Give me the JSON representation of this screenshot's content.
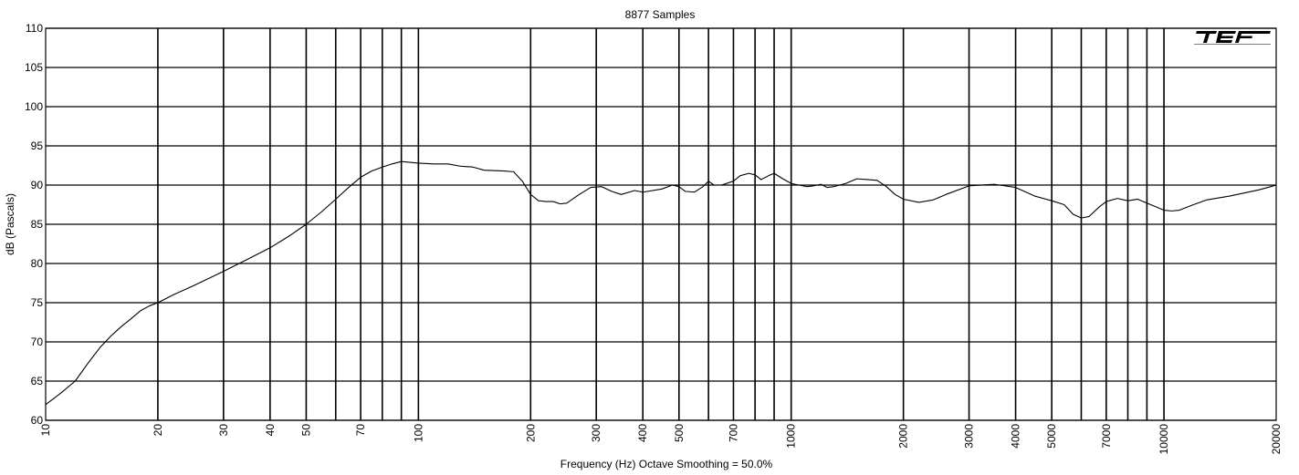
{
  "chart_data": {
    "type": "line",
    "title": "8877 Samples",
    "xlabel": "Frequency (Hz) Octave Smoothing = 50.0%",
    "ylabel": "dB (Pascals)",
    "x_scale": "log",
    "xlim": [
      10,
      20000
    ],
    "ylim": [
      60,
      110
    ],
    "grid": true,
    "logo": "TEF",
    "x_ticks": [
      {
        "value": 10,
        "label": "10"
      },
      {
        "value": 20,
        "label": "20"
      },
      {
        "value": 30,
        "label": "30"
      },
      {
        "value": 40,
        "label": "40"
      },
      {
        "value": 50,
        "label": "50"
      },
      {
        "value": 70,
        "label": "70"
      },
      {
        "value": 100,
        "label": "100"
      },
      {
        "value": 200,
        "label": "200"
      },
      {
        "value": 300,
        "label": "300"
      },
      {
        "value": 400,
        "label": "400"
      },
      {
        "value": 500,
        "label": "500"
      },
      {
        "value": 700,
        "label": "700"
      },
      {
        "value": 1000,
        "label": "1000"
      },
      {
        "value": 2000,
        "label": "2000"
      },
      {
        "value": 3000,
        "label": "3000"
      },
      {
        "value": 4000,
        "label": "4000"
      },
      {
        "value": 5000,
        "label": "5000"
      },
      {
        "value": 7000,
        "label": "7000"
      },
      {
        "value": 10000,
        "label": "10000"
      },
      {
        "value": 20000,
        "label": "20000"
      }
    ],
    "x_gridlines": [
      20,
      30,
      40,
      50,
      60,
      70,
      80,
      90,
      100,
      200,
      300,
      400,
      500,
      600,
      700,
      800,
      900,
      1000,
      2000,
      3000,
      4000,
      5000,
      6000,
      7000,
      8000,
      9000,
      10000
    ],
    "y_ticks": [
      {
        "value": 60,
        "label": "60"
      },
      {
        "value": 65,
        "label": "65"
      },
      {
        "value": 70,
        "label": "70"
      },
      {
        "value": 75,
        "label": "75"
      },
      {
        "value": 80,
        "label": "80"
      },
      {
        "value": 85,
        "label": "85"
      },
      {
        "value": 90,
        "label": "90"
      },
      {
        "value": 95,
        "label": "95"
      },
      {
        "value": 100,
        "label": "100"
      },
      {
        "value": 105,
        "label": "105"
      },
      {
        "value": 110,
        "label": "110"
      }
    ],
    "series": [
      {
        "color": "#000000",
        "points": [
          [
            10,
            62.0
          ],
          [
            11,
            63.5
          ],
          [
            12,
            65.0
          ],
          [
            13,
            67.3
          ],
          [
            14,
            69.3
          ],
          [
            15,
            70.8
          ],
          [
            16,
            72.0
          ],
          [
            17,
            73.0
          ],
          [
            18,
            74.0
          ],
          [
            19,
            74.6
          ],
          [
            20,
            75.0
          ],
          [
            22,
            76.0
          ],
          [
            25,
            77.2
          ],
          [
            30,
            79.0
          ],
          [
            35,
            80.6
          ],
          [
            40,
            82.0
          ],
          [
            45,
            83.5
          ],
          [
            50,
            85.0
          ],
          [
            55,
            86.6
          ],
          [
            60,
            88.2
          ],
          [
            65,
            89.7
          ],
          [
            70,
            91.0
          ],
          [
            75,
            91.8
          ],
          [
            80,
            92.3
          ],
          [
            85,
            92.7
          ],
          [
            90,
            93.0
          ],
          [
            100,
            92.8
          ],
          [
            110,
            92.7
          ],
          [
            120,
            92.7
          ],
          [
            130,
            92.4
          ],
          [
            140,
            92.3
          ],
          [
            150,
            91.9
          ],
          [
            170,
            91.8
          ],
          [
            180,
            91.7
          ],
          [
            190,
            90.5
          ],
          [
            200,
            88.8
          ],
          [
            210,
            88.0
          ],
          [
            220,
            87.9
          ],
          [
            230,
            87.9
          ],
          [
            240,
            87.6
          ],
          [
            250,
            87.7
          ],
          [
            270,
            88.8
          ],
          [
            290,
            89.7
          ],
          [
            310,
            89.8
          ],
          [
            330,
            89.2
          ],
          [
            350,
            88.8
          ],
          [
            380,
            89.3
          ],
          [
            400,
            89.1
          ],
          [
            450,
            89.5
          ],
          [
            480,
            90.0
          ],
          [
            500,
            89.8
          ],
          [
            520,
            89.2
          ],
          [
            550,
            89.1
          ],
          [
            580,
            89.8
          ],
          [
            600,
            90.5
          ],
          [
            620,
            90.0
          ],
          [
            650,
            90.0
          ],
          [
            700,
            90.5
          ],
          [
            730,
            91.2
          ],
          [
            770,
            91.5
          ],
          [
            800,
            91.3
          ],
          [
            830,
            90.7
          ],
          [
            870,
            91.2
          ],
          [
            900,
            91.5
          ],
          [
            950,
            90.8
          ],
          [
            1000,
            90.2
          ],
          [
            1050,
            90.0
          ],
          [
            1100,
            89.8
          ],
          [
            1150,
            89.9
          ],
          [
            1200,
            90.1
          ],
          [
            1250,
            89.7
          ],
          [
            1300,
            89.8
          ],
          [
            1400,
            90.2
          ],
          [
            1500,
            90.8
          ],
          [
            1600,
            90.7
          ],
          [
            1700,
            90.6
          ],
          [
            1800,
            89.8
          ],
          [
            1900,
            88.8
          ],
          [
            2000,
            88.2
          ],
          [
            2200,
            87.8
          ],
          [
            2400,
            88.1
          ],
          [
            2600,
            88.8
          ],
          [
            3000,
            89.9
          ],
          [
            3500,
            90.1
          ],
          [
            4000,
            89.7
          ],
          [
            4500,
            88.6
          ],
          [
            5000,
            88.0
          ],
          [
            5400,
            87.5
          ],
          [
            5700,
            86.3
          ],
          [
            6000,
            85.8
          ],
          [
            6300,
            86.0
          ],
          [
            6700,
            87.2
          ],
          [
            7000,
            87.9
          ],
          [
            7500,
            88.3
          ],
          [
            8000,
            88.0
          ],
          [
            8500,
            88.2
          ],
          [
            9000,
            87.7
          ],
          [
            10000,
            86.8
          ],
          [
            10500,
            86.7
          ],
          [
            11000,
            86.8
          ],
          [
            12000,
            87.5
          ],
          [
            13000,
            88.1
          ],
          [
            15000,
            88.6
          ],
          [
            18000,
            89.4
          ],
          [
            20000,
            90.0
          ]
        ]
      }
    ]
  }
}
